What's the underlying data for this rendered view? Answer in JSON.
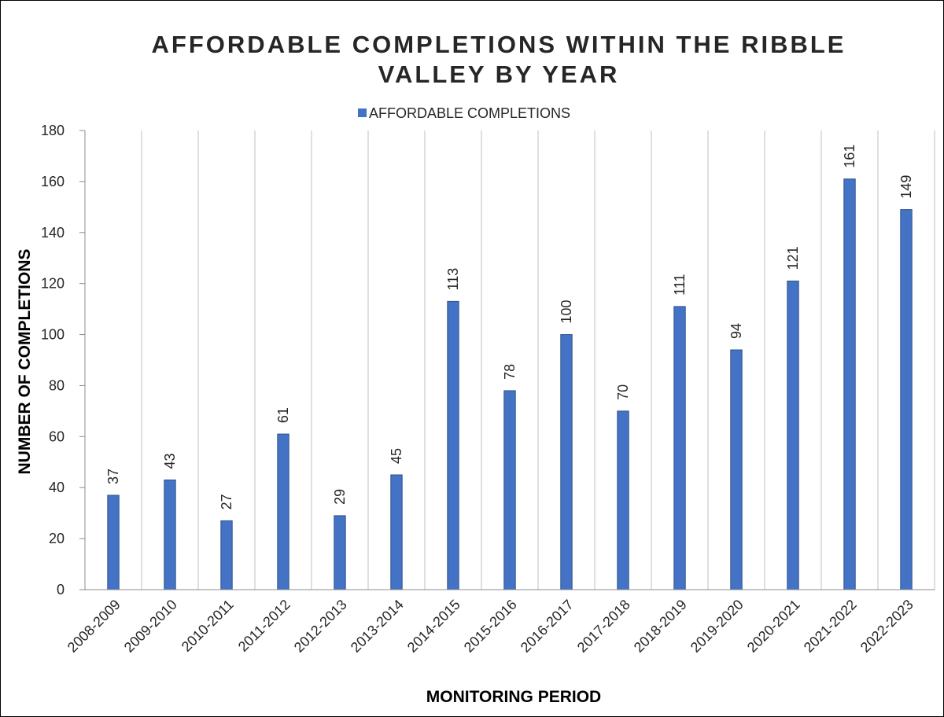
{
  "chart_data": {
    "type": "bar",
    "title_lines": [
      "AFFORDABLE COMPLETIONS WITHIN THE RIBBLE",
      "VALLEY BY YEAR"
    ],
    "xlabel": "MONITORING PERIOD",
    "ylabel": "NUMBER OF COMPLETIONS",
    "ylim": [
      0,
      180
    ],
    "yticks": [
      0,
      20,
      40,
      60,
      80,
      100,
      120,
      140,
      160,
      180
    ],
    "grid": "vertical",
    "legend_position": "top",
    "categories": [
      "2008-2009",
      "2009-2010",
      "2010-2011",
      "2011-2012",
      "2012-2013",
      "2013-2014",
      "2014-2015",
      "2015-2016",
      "2016-2017",
      "2017-2018",
      "2018-2019",
      "2019-2020",
      "2020-2021",
      "2021-2022",
      "2022-2023"
    ],
    "series": [
      {
        "name": "AFFORDABLE COMPLETIONS",
        "color": "#4472C4",
        "values": [
          37,
          43,
          27,
          61,
          29,
          45,
          113,
          78,
          100,
          70,
          111,
          94,
          121,
          161,
          149
        ]
      }
    ]
  }
}
